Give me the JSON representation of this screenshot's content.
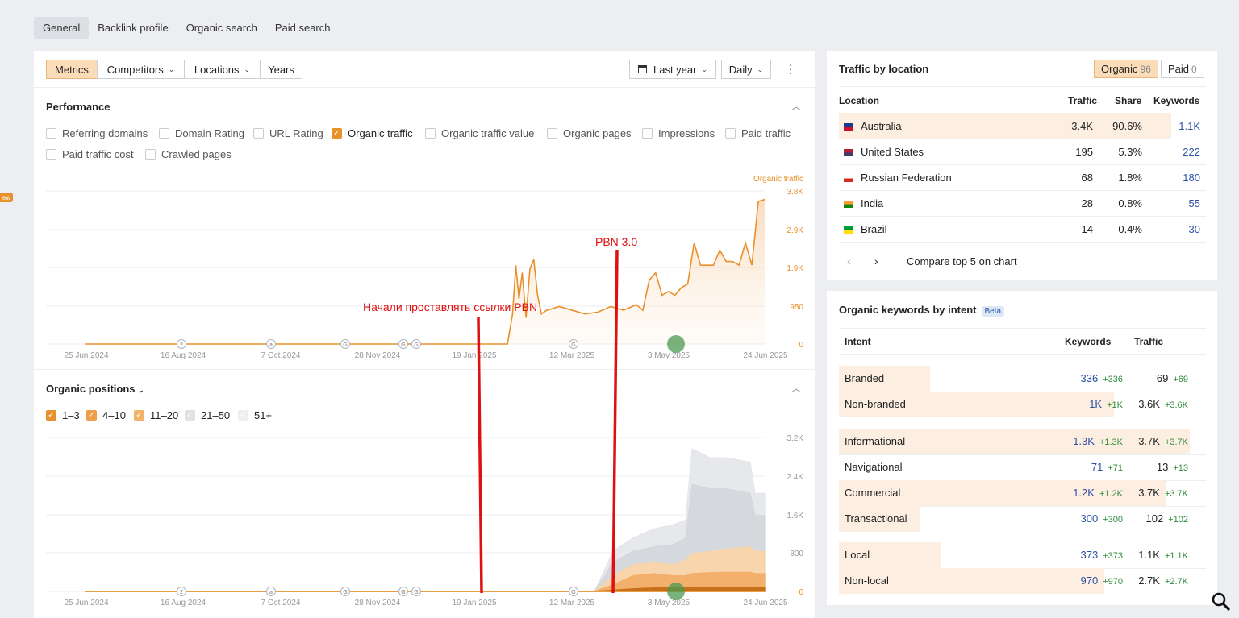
{
  "tabs": [
    "General",
    "Backlink profile",
    "Organic search",
    "Paid search"
  ],
  "side_badge": "ew",
  "toolbar": {
    "metrics": "Metrics",
    "competitors": "Competitors",
    "locations": "Locations",
    "years": "Years",
    "date_range": "Last year",
    "granularity": "Daily"
  },
  "performance": {
    "title": "Performance",
    "checkboxes": [
      {
        "label": "Referring domains",
        "checked": false
      },
      {
        "label": "Domain Rating",
        "checked": false
      },
      {
        "label": "URL Rating",
        "checked": false
      },
      {
        "label": "Organic traffic",
        "checked": true
      },
      {
        "label": "Organic traffic value",
        "checked": false
      },
      {
        "label": "Organic pages",
        "checked": false
      },
      {
        "label": "Impressions",
        "checked": false
      },
      {
        "label": "Paid traffic",
        "checked": false
      },
      {
        "label": "Paid traffic cost",
        "checked": false
      },
      {
        "label": "Crawled pages",
        "checked": false
      }
    ]
  },
  "positions": {
    "title": "Organic positions",
    "checkboxes": [
      {
        "label": "1–3",
        "checked": true
      },
      {
        "label": "4–10",
        "checked": true
      },
      {
        "label": "11–20",
        "checked": true
      },
      {
        "label": "21–50",
        "checked": true
      },
      {
        "label": "51+",
        "checked": true
      }
    ]
  },
  "chart_data": [
    {
      "type": "area",
      "series": [
        {
          "name": "Organic traffic",
          "color": "#e8912b"
        }
      ],
      "x_ticks": [
        "25 Jun 2024",
        "16 Aug 2024",
        "7 Oct 2024",
        "28 Nov 2024",
        "19 Jan 2025",
        "12 Mar 2025",
        "3 May 2025",
        "24 Jun 2025"
      ],
      "y_ticks": [
        "3.8K",
        "2.9K",
        "1.9K",
        "950",
        "0"
      ],
      "ylim": [
        0,
        3800
      ],
      "points": [
        [
          0,
          0
        ],
        [
          0.659,
          0
        ],
        [
          0.667,
          800
        ],
        [
          0.672,
          2100
        ],
        [
          0.677,
          1200
        ],
        [
          0.682,
          1900
        ],
        [
          0.688,
          700
        ],
        [
          0.694,
          2000
        ],
        [
          0.7,
          2250
        ],
        [
          0.706,
          1300
        ],
        [
          0.712,
          800
        ],
        [
          0.72,
          900
        ],
        [
          0.74,
          1000
        ],
        [
          0.76,
          900
        ],
        [
          0.78,
          800
        ],
        [
          0.8,
          850
        ],
        [
          0.82,
          1000
        ],
        [
          0.84,
          900
        ],
        [
          0.86,
          1050
        ],
        [
          0.87,
          900
        ],
        [
          0.88,
          1700
        ],
        [
          0.89,
          1900
        ],
        [
          0.9,
          1300
        ],
        [
          0.91,
          1400
        ],
        [
          0.92,
          1300
        ],
        [
          0.93,
          1500
        ],
        [
          0.94,
          1600
        ],
        [
          0.95,
          2700
        ],
        [
          0.96,
          2100
        ],
        [
          0.97,
          2100
        ],
        [
          0.98,
          2100
        ],
        [
          0.99,
          2500
        ],
        [
          1.0,
          2200
        ],
        [
          1.01,
          2200
        ],
        [
          1.02,
          2100
        ],
        [
          1.03,
          2700
        ],
        [
          1.04,
          2100
        ],
        [
          1.05,
          3800
        ],
        [
          1.06,
          3850
        ]
      ],
      "annotations": [
        "2",
        "a",
        "G",
        "G",
        "G",
        "G"
      ]
    },
    {
      "type": "area",
      "series": [
        {
          "name": "51+",
          "color": "#e2e4e8"
        },
        {
          "name": "21–50",
          "color": "#d5d8dd"
        },
        {
          "name": "11–20",
          "color": "#f7cfa3"
        },
        {
          "name": "4–10",
          "color": "#f0a95c"
        },
        {
          "name": "1–3",
          "color": "#c86f1a"
        }
      ],
      "x_ticks": [
        "25 Jun 2024",
        "16 Aug 2024",
        "7 Oct 2024",
        "28 Nov 2024",
        "19 Jan 2025",
        "12 Mar 2025",
        "3 May 2025",
        "24 Jun 2025"
      ],
      "y_ticks": [
        "3.2K",
        "2.4K",
        "1.6K",
        "800",
        "0"
      ],
      "ylim": [
        0,
        3200
      ]
    }
  ],
  "annotations": {
    "pbn_start": "Начали проставлять ссылки PBN",
    "pbn3": "PBN 3.0",
    "series_label": "Organic traffic"
  },
  "traffic_by_location": {
    "title": "Traffic by location",
    "organic_label": "Organic",
    "organic_count": "96",
    "paid_label": "Paid",
    "paid_count": "0",
    "headers": [
      "Location",
      "Traffic",
      "Share",
      "Keywords"
    ],
    "rows": [
      {
        "country": "Australia",
        "traffic": "3.4K",
        "share": "90.6%",
        "keywords": "1.1K"
      },
      {
        "country": "United States",
        "traffic": "195",
        "share": "5.3%",
        "keywords": "222"
      },
      {
        "country": "Russian Federation",
        "traffic": "68",
        "share": "1.8%",
        "keywords": "180"
      },
      {
        "country": "India",
        "traffic": "28",
        "share": "0.8%",
        "keywords": "55"
      },
      {
        "country": "Brazil",
        "traffic": "14",
        "share": "0.4%",
        "keywords": "30"
      }
    ],
    "compare": "Compare top 5 on chart"
  },
  "keywords_by_intent": {
    "title": "Organic keywords by intent",
    "beta": "Beta",
    "headers": [
      "Intent",
      "Keywords",
      "Traffic"
    ],
    "rows": [
      {
        "intent": "Branded",
        "kw": "336",
        "kw_d": "+336",
        "tr": "69",
        "tr_d": "+69"
      },
      {
        "intent": "Non-branded",
        "kw": "1K",
        "kw_d": "+1K",
        "tr": "3.6K",
        "tr_d": "+3.6K"
      },
      {
        "intent": "Informational",
        "kw": "1.3K",
        "kw_d": "+1.3K",
        "tr": "3.7K",
        "tr_d": "+3.7K"
      },
      {
        "intent": "Navigational",
        "kw": "71",
        "kw_d": "+71",
        "tr": "13",
        "tr_d": "+13"
      },
      {
        "intent": "Commercial",
        "kw": "1.2K",
        "kw_d": "+1.2K",
        "tr": "3.7K",
        "tr_d": "+3.7K"
      },
      {
        "intent": "Transactional",
        "kw": "300",
        "kw_d": "+300",
        "tr": "102",
        "tr_d": "+102"
      },
      {
        "intent": "Local",
        "kw": "373",
        "kw_d": "+373",
        "tr": "1.1K",
        "tr_d": "+1.1K"
      },
      {
        "intent": "Non-local",
        "kw": "970",
        "kw_d": "+970",
        "tr": "2.7K",
        "tr_d": "+2.7K"
      }
    ]
  }
}
